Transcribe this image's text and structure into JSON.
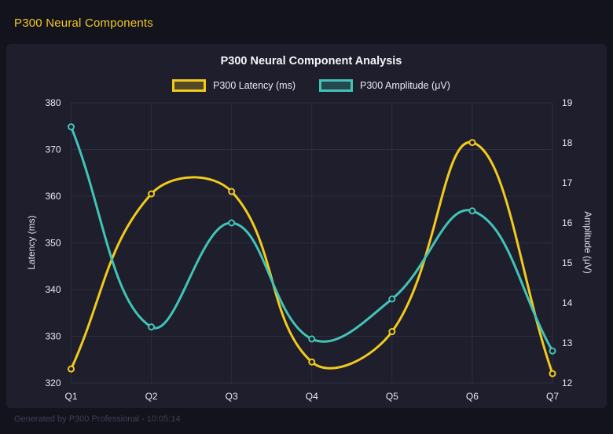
{
  "page": {
    "header_title": "P300 Neural Components",
    "footer": "Generated by P300 Professional - 10:05:14"
  },
  "colors": {
    "page_bg": "#13131d",
    "card_bg": "#1e1e2d",
    "grid": "#2d2d3f",
    "tick_text": "#e8ebf3",
    "title_text": "#f4f6fa",
    "header_accent": "#f3c824",
    "footer_text": "#3b4053",
    "latency_series": "#f2ca1d",
    "amplitude_series": "#41c4b7"
  },
  "chart_data": {
    "type": "line",
    "title": "P300 Neural Component Analysis",
    "categories": [
      "Q1",
      "Q2",
      "Q3",
      "Q4",
      "Q5",
      "Q6",
      "Q7"
    ],
    "series": [
      {
        "name": "P300 Latency (ms)",
        "axis": "left",
        "color": "#f2ca1d",
        "values": [
          323,
          360.5,
          361,
          324.5,
          331,
          371.5,
          322
        ]
      },
      {
        "name": "P300 Amplitude (μV)",
        "axis": "right",
        "color": "#41c4b7",
        "values": [
          18.4,
          13.4,
          16.0,
          13.1,
          14.1,
          16.3,
          12.8
        ]
      }
    ],
    "left_axis": {
      "label": "Latency (ms)",
      "min": 320,
      "max": 380,
      "step": 10
    },
    "right_axis": {
      "label": "Amplitude (μV)",
      "min": 12,
      "max": 19,
      "step": 1
    },
    "legend_position": "top",
    "grid": true,
    "line_tension": 0.4
  }
}
